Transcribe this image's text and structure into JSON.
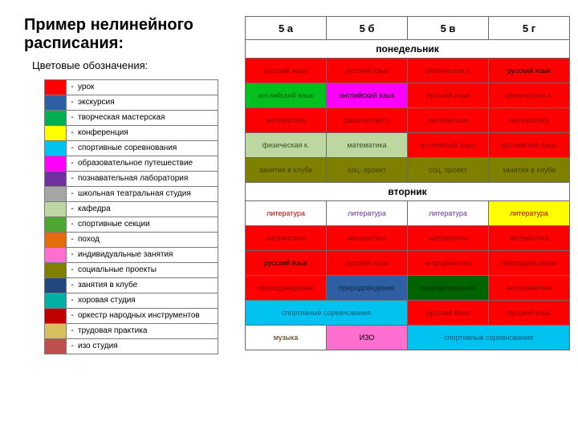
{
  "title_line1": "Пример нелинейного",
  "title_line2": "расписания:",
  "subtitle": "Цветовые обозначения:",
  "subtitle_colon_color": "#c00000",
  "legend": [
    {
      "color": "#ff0000",
      "label": "урок"
    },
    {
      "color": "#2e5fa3",
      "label": "экскурсия"
    },
    {
      "color": "#00b050",
      "label": "творческая мастерская"
    },
    {
      "color": "#ffff00",
      "label": "конференция"
    },
    {
      "color": "#00c2f0",
      "label": "спортивные соревнования"
    },
    {
      "color": "#ff00ff",
      "label": "образовательное путешествие"
    },
    {
      "color": "#7030a0",
      "label": "познавательная лаборатория"
    },
    {
      "color": "#a6a6a6",
      "label": "школьная театральная студия"
    },
    {
      "color": "#bdd7a0",
      "label": "кафедра"
    },
    {
      "color": "#4ea72e",
      "label": "спортивные секции"
    },
    {
      "color": "#e46c0a",
      "label": "поход"
    },
    {
      "color": "#ff6fcf",
      "label": "индивидуальные занятия"
    },
    {
      "color": "#808000",
      "label": "социальные проекты"
    },
    {
      "color": "#1f497d",
      "label": "занятия в клубе"
    },
    {
      "color": "#00b0a0",
      "label": "хоровая студия"
    },
    {
      "color": "#c00000",
      "label": "оркестр народных инструментов"
    },
    {
      "color": "#d8c060",
      "label": "трудовая практика"
    },
    {
      "color": "#c0504d",
      "label": "изо студия"
    }
  ],
  "class_headers": [
    "5 а",
    "5 б",
    "5 в",
    "5 г"
  ],
  "days": [
    {
      "name": "понедельник",
      "rows": [
        [
          {
            "bg": "#ff0000",
            "text": "русский язык",
            "fg": "#8b0000"
          },
          {
            "bg": "#ff0000",
            "text": "русский язык",
            "fg": "#8b0000"
          },
          {
            "bg": "#ff0000",
            "text": "физическая к.",
            "fg": "#8b0000"
          },
          {
            "bg": "#ff0000",
            "text": "русский язык",
            "fg": "#000000"
          }
        ],
        [
          {
            "bg": "#00c020",
            "text": "английский язык",
            "fg": "#006400"
          },
          {
            "bg": "#ff00ff",
            "text": "английский язык",
            "fg": "#000000"
          },
          {
            "bg": "#ff0000",
            "text": "русский язык",
            "fg": "#8b0000"
          },
          {
            "bg": "#ff0000",
            "text": "физическая к.",
            "fg": "#8b0000"
          }
        ],
        [
          {
            "bg": "#ff0000",
            "text": "математика",
            "fg": "#8b0000"
          },
          {
            "bg": "#ff0000",
            "text": "физическая к.",
            "fg": "#8b0000"
          },
          {
            "bg": "#ff0000",
            "text": "математика",
            "fg": "#8b0000"
          },
          {
            "bg": "#ff0000",
            "text": "математика",
            "fg": "#8b0000"
          }
        ],
        [
          {
            "bg": "#bdd7a0",
            "text": "физическая к.",
            "fg": "#3b5323"
          },
          {
            "bg": "#bdd7a0",
            "text": "математика",
            "fg": "#3b5323"
          },
          {
            "bg": "#ff0000",
            "text": "английский язык",
            "fg": "#8b0000"
          },
          {
            "bg": "#ff0000",
            "text": "английский язык",
            "fg": "#8b0000"
          }
        ],
        [
          {
            "bg": "#808000",
            "text": "занятия в клубе",
            "fg": "#404000"
          },
          {
            "bg": "#808000",
            "text": "соц. проект",
            "fg": "#404000"
          },
          {
            "bg": "#808000",
            "text": "соц. проект",
            "fg": "#404000"
          },
          {
            "bg": "#808000",
            "text": "занятия в клубе",
            "fg": "#404000"
          }
        ]
      ]
    },
    {
      "name": "вторник",
      "rows": [
        [
          {
            "bg": "#ffffff",
            "text": "литература",
            "fg": "#c00000"
          },
          {
            "bg": "#ffffff",
            "text": "литература",
            "fg": "#7030a0"
          },
          {
            "bg": "#ffffff",
            "text": "литература",
            "fg": "#7030a0"
          },
          {
            "bg": "#ffff00",
            "text": "литература",
            "fg": "#c00000"
          }
        ],
        [
          {
            "bg": "#ff0000",
            "text": "математика",
            "fg": "#8b0000"
          },
          {
            "bg": "#ff0000",
            "text": "математика",
            "fg": "#8b0000"
          },
          {
            "bg": "#ff0000",
            "text": "математика",
            "fg": "#8b0000"
          },
          {
            "bg": "#ff0000",
            "text": "математика",
            "fg": "#8b0000"
          }
        ],
        [
          {
            "bg": "#ff0000",
            "text": "русский язык",
            "fg": "#000000"
          },
          {
            "bg": "#ff0000",
            "text": "русский язык",
            "fg": "#8b0000"
          },
          {
            "bg": "#ff0000",
            "text": "информатика",
            "fg": "#8b0000"
          },
          {
            "bg": "#ff0000",
            "text": "природоведение",
            "fg": "#8b0000"
          }
        ],
        [
          {
            "bg": "#ff0000",
            "text": "природоведение",
            "fg": "#8b0000"
          },
          {
            "bg": "#2e5fa3",
            "text": "природоведение",
            "fg": "#12294a"
          },
          {
            "bg": "#006400",
            "text": "природоведение",
            "fg": "#003200"
          },
          {
            "bg": "#ff0000",
            "text": "информатика",
            "fg": "#8b0000"
          }
        ],
        [
          {
            "bg": "#00c2f0",
            "text": "спортивные соревнования",
            "fg": "#005a73",
            "span": 2
          },
          {
            "bg": "#ff0000",
            "text": "русский язык",
            "fg": "#8b0000"
          },
          {
            "bg": "#ff0000",
            "text": "русский язык",
            "fg": "#8b0000"
          }
        ],
        [
          {
            "bg": "#ffffff",
            "text": "музыка",
            "fg": "#4a2c00"
          },
          {
            "bg": "#ff6fcf",
            "text": "ИЗО",
            "fg": "#000000"
          },
          {
            "bg": "#00c2f0",
            "text": "спортивные соревнования",
            "fg": "#005a73",
            "span": 2
          }
        ]
      ]
    }
  ]
}
